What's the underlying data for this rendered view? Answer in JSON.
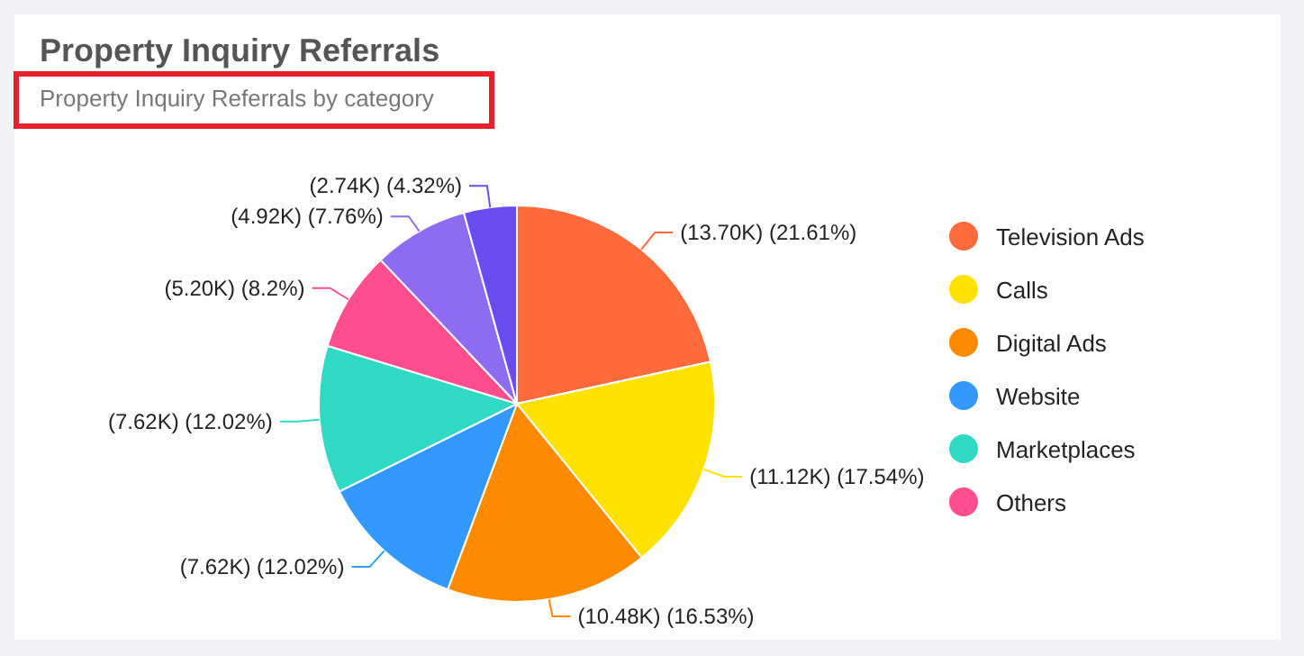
{
  "chart_data": {
    "type": "pie",
    "title": "Property Inquiry Referrals",
    "subtitle": "Property Inquiry Referrals by category",
    "categories": [
      "Television Ads",
      "Calls",
      "Digital Ads",
      "Website",
      "Marketplaces",
      "Others",
      null,
      null
    ],
    "values": [
      13700,
      11120,
      10480,
      7620,
      7620,
      5200,
      4920,
      2740
    ],
    "value_labels": [
      "(13.70K) (21.61%)",
      "(11.12K) (17.54%)",
      "(10.48K) (16.53%)",
      "(7.62K) (12.02%)",
      "(7.62K) (12.02%)",
      "(5.20K) (8.2%)",
      "(4.92K) (7.76%)",
      "(2.74K) (4.32%)"
    ],
    "colors": [
      "#ff6a3d",
      "#ffe200",
      "#ff8a00",
      "#3399ff",
      "#2fd9c4",
      "#ff4d8d",
      "#8d6cf2",
      "#6a4df0"
    ],
    "legend": "right"
  }
}
